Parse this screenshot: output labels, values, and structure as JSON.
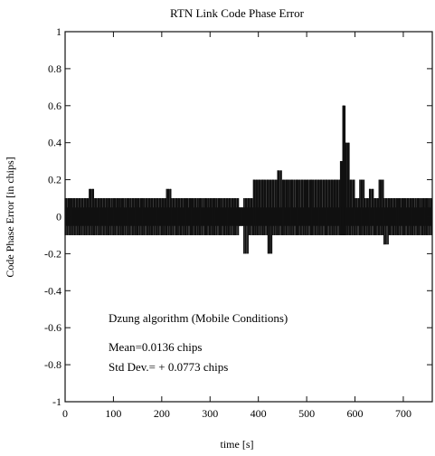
{
  "chart_data": {
    "type": "line",
    "title": "RTN Link Code Phase Error",
    "xlabel": "time [s]",
    "ylabel": "Code Phase Error [in chips]",
    "xlim": [
      0,
      760
    ],
    "ylim": [
      -1,
      1
    ],
    "xticks": [
      0,
      100,
      200,
      300,
      400,
      500,
      600,
      700
    ],
    "xtick_labels": [
      "0",
      "100",
      "200",
      "300",
      "400",
      "500",
      "600",
      "700"
    ],
    "yticks": [
      1,
      0.8,
      0.6,
      0.4,
      0.2,
      0,
      -0.2,
      -0.4,
      -0.6,
      -0.8,
      -1
    ],
    "ytick_labels": [
      "1",
      "0.8",
      "0.6",
      "0.4",
      "0.2",
      "0",
      "-0.2",
      "-0.4",
      "-0.6",
      "-0.8",
      "-1"
    ],
    "grid": false,
    "series": [
      {
        "values_description_x_s": [
          0,
          10,
          20,
          30,
          40,
          50,
          60,
          70,
          80,
          90,
          100,
          110,
          120,
          130,
          140,
          150,
          160,
          170,
          180,
          190,
          200,
          210,
          220,
          230,
          240,
          250,
          260,
          270,
          280,
          290,
          300,
          310,
          320,
          330,
          340,
          350,
          360,
          370,
          380,
          390,
          400,
          410,
          420,
          430,
          440,
          450,
          460,
          470,
          480,
          490,
          500,
          510,
          520,
          530,
          540,
          550,
          560,
          570,
          575,
          580,
          590,
          600,
          610,
          620,
          630,
          640,
          650,
          660,
          670,
          680,
          690,
          700,
          710,
          720,
          730,
          740,
          750,
          760
        ],
        "x": [
          0,
          10,
          20,
          30,
          40,
          50,
          60,
          70,
          80,
          90,
          100,
          110,
          120,
          130,
          140,
          150,
          160,
          170,
          180,
          190,
          200,
          210,
          220,
          230,
          240,
          250,
          260,
          270,
          280,
          290,
          300,
          310,
          320,
          330,
          340,
          350,
          360,
          370,
          380,
          390,
          400,
          410,
          420,
          430,
          440,
          450,
          460,
          470,
          480,
          490,
          500,
          510,
          520,
          530,
          540,
          550,
          560,
          570,
          575,
          580,
          590,
          600,
          610,
          620,
          630,
          640,
          650,
          660,
          670,
          680,
          690,
          700,
          710,
          720,
          730,
          740,
          750,
          760
        ],
        "y_max": [
          0.1,
          0.1,
          0.1,
          0.1,
          0.1,
          0.15,
          0.1,
          0.1,
          0.1,
          0.1,
          0.1,
          0.1,
          0.1,
          0.1,
          0.1,
          0.1,
          0.1,
          0.1,
          0.1,
          0.1,
          0.1,
          0.15,
          0.1,
          0.1,
          0.1,
          0.1,
          0.1,
          0.1,
          0.1,
          0.1,
          0.1,
          0.1,
          0.1,
          0.1,
          0.1,
          0.1,
          0.05,
          0.1,
          0.1,
          0.2,
          0.2,
          0.2,
          0.2,
          0.2,
          0.25,
          0.2,
          0.2,
          0.2,
          0.2,
          0.2,
          0.2,
          0.2,
          0.2,
          0.2,
          0.2,
          0.2,
          0.2,
          0.3,
          0.6,
          0.4,
          0.2,
          0.1,
          0.2,
          0.1,
          0.15,
          0.1,
          0.2,
          0.1,
          0.1,
          0.1,
          0.1,
          0.1,
          0.1,
          0.1,
          0.1,
          0.1,
          0.1,
          0.1
        ],
        "y_min": [
          -0.1,
          -0.1,
          -0.1,
          -0.1,
          -0.1,
          -0.1,
          -0.1,
          -0.1,
          -0.1,
          -0.1,
          -0.1,
          -0.1,
          -0.1,
          -0.1,
          -0.1,
          -0.1,
          -0.1,
          -0.1,
          -0.1,
          -0.1,
          -0.1,
          -0.1,
          -0.1,
          -0.1,
          -0.1,
          -0.1,
          -0.1,
          -0.1,
          -0.1,
          -0.1,
          -0.1,
          -0.1,
          -0.1,
          -0.1,
          -0.1,
          -0.1,
          -0.05,
          -0.2,
          -0.1,
          -0.1,
          -0.1,
          -0.1,
          -0.2,
          -0.1,
          -0.1,
          -0.1,
          -0.1,
          -0.1,
          -0.1,
          -0.1,
          -0.1,
          -0.1,
          -0.1,
          -0.1,
          -0.1,
          -0.1,
          -0.1,
          -0.1,
          -0.1,
          -0.1,
          -0.1,
          -0.1,
          -0.1,
          -0.1,
          -0.1,
          -0.1,
          -0.1,
          -0.15,
          -0.1,
          -0.1,
          -0.1,
          -0.1,
          -0.1,
          -0.1,
          -0.1,
          -0.1,
          -0.1,
          -0.1
        ]
      }
    ],
    "annotations": [
      "Dzung algorithm (Mobile Conditions)",
      "Mean=0.0136 chips",
      "Std Dev.= + 0.0773 chips"
    ],
    "colors": {
      "line": "#111111",
      "background": "#ffffff"
    }
  }
}
